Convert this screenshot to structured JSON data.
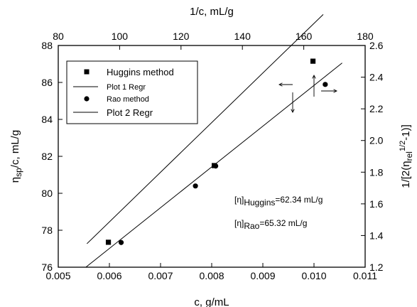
{
  "chart_data": {
    "type": "scatter",
    "bottom_axis": {
      "label": "c, g/mL",
      "range": [
        0.005,
        0.011
      ],
      "ticks": [
        "0.005",
        "0.006",
        "0.007",
        "0.008",
        "0.009",
        "0.010",
        "0.011"
      ]
    },
    "top_axis": {
      "label": "1/c, mL/g",
      "range": [
        80,
        180
      ],
      "ticks": [
        "80",
        "100",
        "120",
        "140",
        "160",
        "180"
      ]
    },
    "left_axis": {
      "label": "ηsp/c, mL/g",
      "range": [
        76,
        88
      ],
      "ticks": [
        "76",
        "78",
        "80",
        "82",
        "84",
        "86",
        "88"
      ]
    },
    "right_axis": {
      "label": "1/[2(ηrel1/2-1)]",
      "range": [
        1.2,
        2.6
      ],
      "ticks": [
        "1.2",
        "1.4",
        "1.6",
        "1.8",
        "2.0",
        "2.2",
        "2.4",
        "2.6"
      ]
    },
    "series": [
      {
        "name": "Huggins method",
        "marker": "square",
        "axes": "bottom-left",
        "points": [
          [
            0.00598,
            77.35
          ],
          [
            0.00805,
            81.5
          ],
          [
            0.00998,
            87.15
          ]
        ]
      },
      {
        "name": "Plot 1 Regr",
        "line": true,
        "axes": "bottom-left",
        "x_range": [
          0.00556,
          0.01018
        ],
        "slope": 2685.6,
        "intercept": 62.34
      },
      {
        "name": "Rao method",
        "marker": "circle",
        "axes": "top-right",
        "points": [
          [
            100.5,
            1.356
          ],
          [
            124.7,
            1.713
          ],
          [
            131.3,
            1.839
          ],
          [
            167.0,
            2.354
          ]
        ]
      },
      {
        "name": "Plot 2 Regr",
        "line": true,
        "axes": "top-right",
        "x_range": [
          89.0,
          172.5
        ],
        "slope": 0.01544,
        "intercept": -0.174
      }
    ],
    "legend_position": "top-left",
    "grid": false,
    "annotations": {
      "huggins": {
        "bracket": "[η]",
        "sub": "Huggins",
        "value": "=62.34 mL/g"
      },
      "rao": {
        "bracket": "[η]",
        "sub": "Rao",
        "value": "=65.32 mL/g"
      }
    }
  }
}
